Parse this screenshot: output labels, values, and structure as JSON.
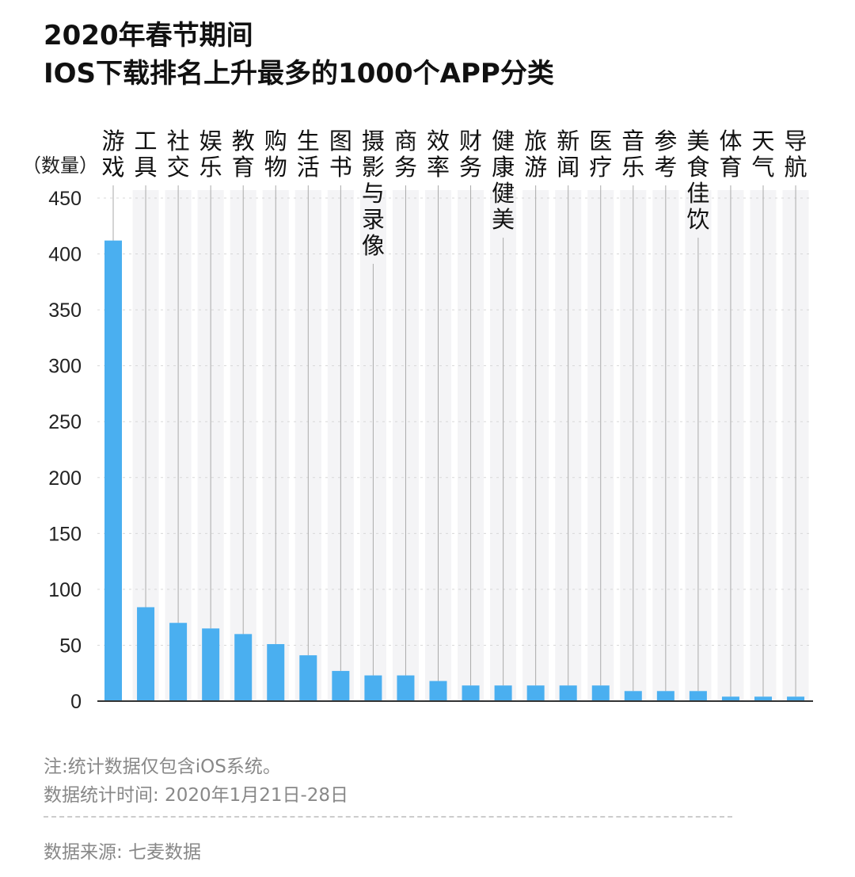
{
  "chart_data": {
    "type": "bar",
    "title": [
      "2020年春节期间",
      "IOS下载排名上升最多的1000个APP分类"
    ],
    "ylabel": "（数量）",
    "xlabel": "",
    "ylim": [
      0,
      450
    ],
    "yticks": [
      0,
      50,
      100,
      150,
      200,
      250,
      300,
      350,
      400,
      450
    ],
    "grid": true,
    "categories": [
      "游戏",
      "工具",
      "社交",
      "娱乐",
      "教育",
      "购物",
      "生活",
      "图书",
      "摄影与录像",
      "商务",
      "效率",
      "财务",
      "健康健美",
      "旅游",
      "新闻",
      "医疗",
      "音乐",
      "参考",
      "美食佳饮",
      "体育",
      "天气",
      "导航"
    ],
    "values": [
      412,
      84,
      70,
      65,
      60,
      51,
      41,
      27,
      23,
      23,
      18,
      14,
      14,
      14,
      14,
      14,
      9,
      9,
      9,
      4,
      4,
      4
    ],
    "bar_color": "#4aaff0"
  },
  "notes": {
    "note1": "注:统计数据仅包含iOS系统。",
    "note2": "数据统计时间: 2020年1月21日-28日",
    "source": "数据来源: 七麦数据"
  }
}
